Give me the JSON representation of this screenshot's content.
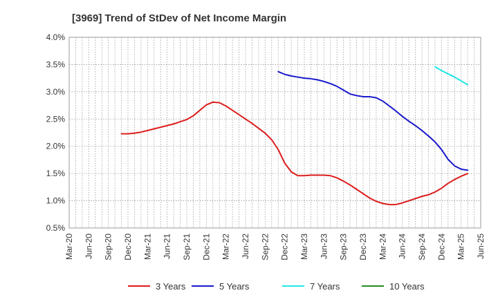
{
  "chart_data": {
    "type": "line",
    "title": "[3969]  Trend of StDev of Net Income Margin",
    "xlabel": "",
    "ylabel": "",
    "x_ticks": [
      "Mar-20",
      "Jun-20",
      "Sep-20",
      "Dec-20",
      "Mar-21",
      "Jun-21",
      "Sep-21",
      "Dec-21",
      "Mar-22",
      "Jun-22",
      "Sep-22",
      "Dec-22",
      "Mar-23",
      "Jun-23",
      "Sep-23",
      "Dec-23",
      "Mar-24",
      "Jun-24",
      "Sep-24",
      "Dec-24",
      "Mar-25",
      "Jun-25"
    ],
    "y_ticks": [
      "0.5%",
      "1.0%",
      "1.5%",
      "2.0%",
      "2.5%",
      "3.0%",
      "3.5%",
      "4.0%"
    ],
    "ylim": [
      0.5,
      4.0
    ],
    "grid": true,
    "legend_position": "bottom",
    "series": [
      {
        "name": "3 Years",
        "color": "#dd1c1c",
        "points": [
          [
            "Nov-20",
            2.23
          ],
          [
            "Dec-20",
            2.23
          ],
          [
            "Jan-21",
            2.24
          ],
          [
            "Feb-21",
            2.26
          ],
          [
            "Mar-21",
            2.29
          ],
          [
            "Apr-21",
            2.32
          ],
          [
            "May-21",
            2.35
          ],
          [
            "Jun-21",
            2.38
          ],
          [
            "Jul-21",
            2.41
          ],
          [
            "Aug-21",
            2.45
          ],
          [
            "Sep-21",
            2.49
          ],
          [
            "Oct-21",
            2.56
          ],
          [
            "Nov-21",
            2.66
          ],
          [
            "Dec-21",
            2.76
          ],
          [
            "Jan-22",
            2.81
          ],
          [
            "Feb-22",
            2.8
          ],
          [
            "Mar-22",
            2.74
          ],
          [
            "Apr-22",
            2.66
          ],
          [
            "May-22",
            2.58
          ],
          [
            "Jun-22",
            2.5
          ],
          [
            "Jul-22",
            2.42
          ],
          [
            "Aug-22",
            2.33
          ],
          [
            "Sep-22",
            2.24
          ],
          [
            "Oct-22",
            2.12
          ],
          [
            "Nov-22",
            1.94
          ],
          [
            "Dec-22",
            1.69
          ],
          [
            "Jan-23",
            1.53
          ],
          [
            "Feb-23",
            1.46
          ],
          [
            "Mar-23",
            1.46
          ],
          [
            "Apr-23",
            1.47
          ],
          [
            "May-23",
            1.47
          ],
          [
            "Jun-23",
            1.47
          ],
          [
            "Jul-23",
            1.46
          ],
          [
            "Aug-23",
            1.42
          ],
          [
            "Sep-23",
            1.36
          ],
          [
            "Oct-23",
            1.29
          ],
          [
            "Nov-23",
            1.21
          ],
          [
            "Dec-23",
            1.13
          ],
          [
            "Jan-24",
            1.05
          ],
          [
            "Feb-24",
            0.99
          ],
          [
            "Mar-24",
            0.95
          ],
          [
            "Apr-24",
            0.93
          ],
          [
            "May-24",
            0.93
          ],
          [
            "Jun-24",
            0.96
          ],
          [
            "Jul-24",
            1.0
          ],
          [
            "Aug-24",
            1.04
          ],
          [
            "Sep-24",
            1.08
          ],
          [
            "Oct-24",
            1.11
          ],
          [
            "Nov-24",
            1.16
          ],
          [
            "Dec-24",
            1.23
          ],
          [
            "Jan-25",
            1.32
          ],
          [
            "Feb-25",
            1.39
          ],
          [
            "Mar-25",
            1.45
          ],
          [
            "Apr-25",
            1.5
          ]
        ]
      },
      {
        "name": "5 Years",
        "color": "#1818cc",
        "points": [
          [
            "Nov-22",
            3.37
          ],
          [
            "Dec-22",
            3.32
          ],
          [
            "Jan-23",
            3.29
          ],
          [
            "Feb-23",
            3.27
          ],
          [
            "Mar-23",
            3.25
          ],
          [
            "Apr-23",
            3.24
          ],
          [
            "May-23",
            3.22
          ],
          [
            "Jun-23",
            3.19
          ],
          [
            "Jul-23",
            3.15
          ],
          [
            "Aug-23",
            3.1
          ],
          [
            "Sep-23",
            3.03
          ],
          [
            "Oct-23",
            2.96
          ],
          [
            "Nov-23",
            2.93
          ],
          [
            "Dec-23",
            2.91
          ],
          [
            "Jan-24",
            2.91
          ],
          [
            "Feb-24",
            2.89
          ],
          [
            "Mar-24",
            2.83
          ],
          [
            "Apr-24",
            2.74
          ],
          [
            "May-24",
            2.65
          ],
          [
            "Jun-24",
            2.55
          ],
          [
            "Jul-24",
            2.46
          ],
          [
            "Aug-24",
            2.38
          ],
          [
            "Sep-24",
            2.29
          ],
          [
            "Oct-24",
            2.19
          ],
          [
            "Nov-24",
            2.08
          ],
          [
            "Dec-24",
            1.94
          ],
          [
            "Jan-25",
            1.76
          ],
          [
            "Feb-25",
            1.64
          ],
          [
            "Mar-25",
            1.58
          ],
          [
            "Apr-25",
            1.56
          ]
        ]
      },
      {
        "name": "7 Years",
        "color": "#22e5e5",
        "points": [
          [
            "Nov-24",
            3.46
          ],
          [
            "Dec-24",
            3.39
          ],
          [
            "Jan-25",
            3.33
          ],
          [
            "Feb-25",
            3.27
          ],
          [
            "Mar-25",
            3.2
          ],
          [
            "Apr-25",
            3.13
          ]
        ]
      },
      {
        "name": "10 Years",
        "color": "#228b22",
        "points": []
      }
    ]
  }
}
